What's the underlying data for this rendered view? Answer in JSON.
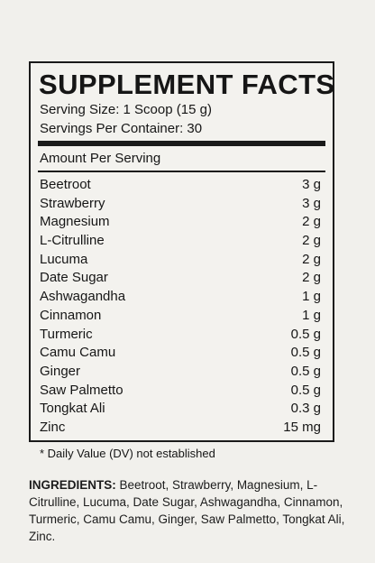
{
  "facts": {
    "title": "SUPPLEMENT FACTS",
    "serving_size": "Serving Size: 1 Scoop (15 g)",
    "servings_per_container": "Servings Per Container: 30",
    "amount_per_serving": "Amount Per Serving",
    "rows": [
      {
        "name": "Beetroot",
        "amount": "3 g"
      },
      {
        "name": "Strawberry",
        "amount": "3 g"
      },
      {
        "name": "Magnesium",
        "amount": "2 g"
      },
      {
        "name": "L-Citrulline",
        "amount": "2 g"
      },
      {
        "name": "Lucuma",
        "amount": "2 g"
      },
      {
        "name": "Date Sugar",
        "amount": "2 g"
      },
      {
        "name": "Ashwagandha",
        "amount": "1 g"
      },
      {
        "name": "Cinnamon",
        "amount": "1 g"
      },
      {
        "name": "Turmeric",
        "amount": "0.5 g"
      },
      {
        "name": "Camu Camu",
        "amount": "0.5 g"
      },
      {
        "name": "Ginger",
        "amount": "0.5 g"
      },
      {
        "name": "Saw Palmetto",
        "amount": "0.5 g"
      },
      {
        "name": "Tongkat Ali",
        "amount": "0.3 g"
      },
      {
        "name": "Zinc",
        "amount": "15 mg"
      }
    ],
    "footnote": "* Daily Value (DV) not established"
  },
  "ingredients": {
    "label": "INGREDIENTS:",
    "text": " Beetroot, Strawberry, Magnesium, L-Citrulline, Lucuma, Date Sugar, Ashwagandha, Cinnamon, Turmeric, Camu Camu, Ginger, Saw Palmetto, Tongkat Ali, Zinc."
  }
}
